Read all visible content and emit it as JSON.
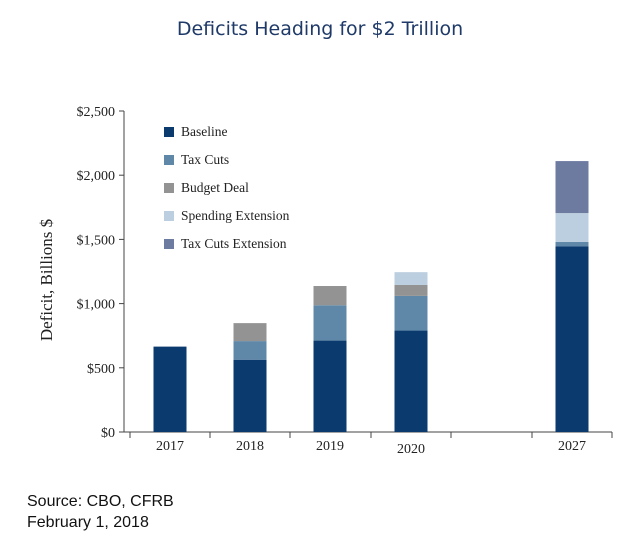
{
  "chart_data": {
    "type": "bar",
    "stacked": true,
    "title": "Deficits Heading for $2 Trillion",
    "ylabel": "Deficit, Billions $",
    "xlabel": "",
    "ylim": [
      0,
      2500
    ],
    "yticks": [
      0,
      500,
      1000,
      1500,
      2000,
      2500
    ],
    "ytick_labels": [
      "$0",
      "$500",
      "$1,000",
      "$1,500",
      "$2,000",
      "$2,500"
    ],
    "categories": [
      "2017",
      "2018",
      "2019",
      "2020",
      "2027"
    ],
    "grid": false,
    "legend_position": "top-left",
    "series": [
      {
        "name": "Baseline",
        "color": "#0b3a6e",
        "values": [
          665,
          563,
          712,
          790,
          1445
        ]
      },
      {
        "name": "Tax Cuts",
        "color": "#5f88a8",
        "values": [
          0,
          145,
          275,
          270,
          35
        ]
      },
      {
        "name": "Budget Deal",
        "color": "#939393",
        "values": [
          0,
          140,
          150,
          85,
          0
        ]
      },
      {
        "name": "Spending Extension",
        "color": "#bccfe0",
        "values": [
          0,
          0,
          0,
          100,
          225
        ]
      },
      {
        "name": "Tax Cuts Extension",
        "color": "#6e7ba1",
        "values": [
          0,
          0,
          0,
          0,
          405
        ]
      }
    ]
  },
  "footer": {
    "source": "Source: CBO, CFRB",
    "date": "February 1, 2018"
  }
}
